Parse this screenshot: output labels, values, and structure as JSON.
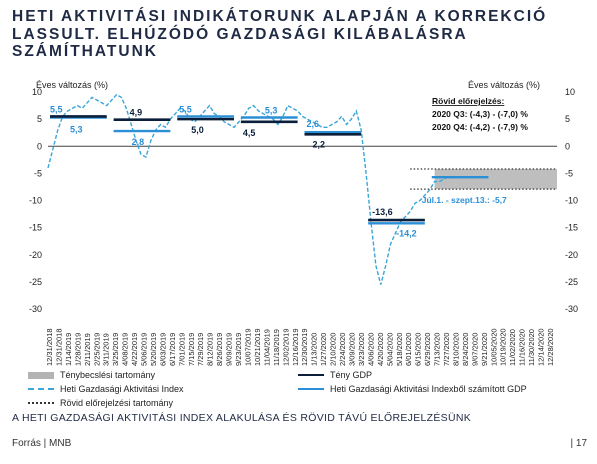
{
  "title": "HETI AKTIVITÁSI INDIKÁTORUNK ALAPJÁN A KORREKCIÓ LASSULT. ELHÚZÓDÓ GAZDASÁGI KILÁBALÁSRA SZÁMÍTHATUNK",
  "caption": "A HETI GAZDASÁGI AKTIVITÁSI INDEX ALAKULÁSA ÉS RÖVID TÁVÚ ELŐREJELZÉSÜNK",
  "source": "Forrás | MNB",
  "page_number": "| 17",
  "chart_data": {
    "type": "line",
    "ylabel_left": "Éves változás (%)",
    "ylabel_right": "Éves változás (%)",
    "ylim": [
      -30,
      10
    ],
    "yticks": [
      10,
      5,
      0,
      -5,
      -10,
      -15,
      -20,
      -25,
      -30
    ],
    "x_tick_labels": [
      "12/31/2018",
      "1/28/2019",
      "2/25/2019",
      "3/25/2019",
      "4/22/2019",
      "5/20/2019",
      "6/17/2019",
      "7/15/2019",
      "8/12/2019",
      "9/09/2019",
      "10/07/2019",
      "11/04/2019",
      "12/02/2019",
      "12/30/2019",
      "1/27/2020",
      "2/24/2020",
      "3/23/2020",
      "4/20/2020",
      "5/18/2020",
      "6/15/2020",
      "7/13/2020",
      "8/10/2020",
      "9/07/2020",
      "10/05/2020",
      "11/02/2020",
      "11/30/2020",
      "12/28/2020"
    ],
    "x_tick_labels_lower": [
      "12/31/2018",
      "1/14/2019",
      "2/11/2019",
      "3/11/2019",
      "4/08/2019",
      "5/06/2019",
      "6/03/2019",
      "7/01/2019",
      "7/29/2019",
      "8/26/2019",
      "9/23/2019",
      "10/21/2019",
      "11/18/2019",
      "12/16/2019",
      "1/13/2020",
      "2/10/2020",
      "3/09/2020",
      "4/06/2020",
      "5/04/2020",
      "6/01/2020",
      "6/29/2020",
      "7/27/2020",
      "8/24/2020",
      "9/21/2020",
      "10/19/2020",
      "11/16/2020",
      "12/14/2020"
    ],
    "gdp_actual": [
      {
        "label": "5,5",
        "value": 5.5
      },
      {
        "label": "4,9",
        "value": 4.9
      },
      {
        "label": "5,0",
        "value": 5.0
      },
      {
        "label": "4,5",
        "value": 4.5
      },
      {
        "label": "2,2",
        "value": 2.2
      },
      {
        "label": "-13,6",
        "value": -13.6
      }
    ],
    "gdp_from_index": [
      {
        "label": "5,3",
        "value": 5.3
      },
      {
        "label": "2,8",
        "value": 2.8
      },
      {
        "label": "5,5",
        "value": 5.5
      },
      {
        "label": "5,3",
        "value": 5.3
      },
      {
        "label": "2,6",
        "value": 2.6
      },
      {
        "label": "-14,2",
        "value": -14.2
      },
      {
        "label": "Júl.1. - szept.13.: -5,7",
        "value": -5.7
      }
    ],
    "weekly_index": [
      -4.0,
      -0.5,
      3.0,
      5.5,
      6.5,
      7.0,
      7.5,
      7.0,
      8.0,
      9.0,
      8.5,
      8.0,
      7.5,
      8.5,
      9.5,
      9.0,
      7.0,
      4.0,
      1.0,
      -1.5,
      -2.0,
      1.0,
      3.0,
      4.0,
      3.5,
      5.0,
      6.0,
      7.0,
      6.5,
      5.0,
      4.5,
      5.5,
      6.5,
      7.5,
      6.0,
      5.5,
      4.5,
      4.0,
      3.5,
      4.5,
      5.5,
      7.0,
      7.5,
      6.5,
      6.0,
      5.5,
      5.0,
      4.0,
      5.5,
      7.5,
      7.0,
      6.5,
      5.5,
      5.0,
      4.5,
      4.0,
      3.5,
      3.5,
      4.0,
      4.5,
      5.5,
      4.0,
      5.0,
      6.5,
      3.0,
      -5.0,
      -14.0,
      -22.0,
      -25.5,
      -22.0,
      -18.0,
      -16.0,
      -14.0,
      -13.0,
      -12.0,
      -10.5,
      -10.0,
      -9.0,
      -8.0,
      -6.5,
      -6.5,
      -6.0,
      -5.5,
      -6.0
    ],
    "forecast": {
      "title": "Rövid előrejelzés:",
      "q3": "2020 Q3: (-4,3) - (-7,0) %",
      "q4": "2020 Q4: (-4,2) - (-7,9) %",
      "range_upper": -4.2,
      "range_lower": -7.9
    },
    "legend": [
      {
        "key": "range",
        "label": "Ténybecslési tartomány"
      },
      {
        "key": "gdp",
        "label": "Tény GDP"
      },
      {
        "key": "index",
        "label": "Heti Gazdasági Aktivitási Index"
      },
      {
        "key": "index_gdp",
        "label": "Heti Gazdasági Aktivitási Indexből számított GDP"
      },
      {
        "key": "forecast_range",
        "label": "Rövid előrejelzési tartomány"
      }
    ],
    "colors": {
      "gdp": "#0b1f3a",
      "index": "#3aa5d8",
      "index_gdp": "#2b8fd6",
      "range": "#b3b3b3",
      "forecast_range": "#333333"
    },
    "grid": false,
    "legend_position": "bottom"
  }
}
